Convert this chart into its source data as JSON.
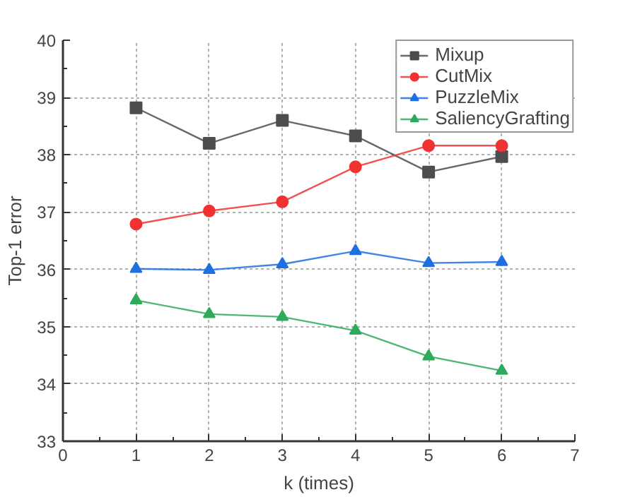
{
  "chart_data": {
    "type": "line",
    "xlabel": "k (times)",
    "ylabel": "Top-1 error",
    "x": [
      1,
      2,
      3,
      4,
      5,
      6
    ],
    "xlim": [
      0,
      7
    ],
    "xticks": [
      0,
      1,
      2,
      3,
      4,
      5,
      6,
      7
    ],
    "ylim": [
      33,
      40
    ],
    "yticks": [
      33,
      34,
      35,
      36,
      37,
      38,
      39,
      40
    ],
    "grid": true,
    "legend": "top right",
    "line_style": "solid",
    "series": [
      {
        "name": "Mixup",
        "color": "#4d4d4d",
        "marker": "square",
        "values": [
          38.82,
          38.2,
          38.6,
          38.33,
          37.7,
          37.97
        ]
      },
      {
        "name": "CutMix",
        "color": "#f03232",
        "marker": "circle",
        "values": [
          36.79,
          37.02,
          37.18,
          37.79,
          38.16,
          38.16
        ]
      },
      {
        "name": "PuzzleMix",
        "color": "#1f6fe0",
        "marker": "triangle",
        "values": [
          36.01,
          35.99,
          36.09,
          36.32,
          36.11,
          36.13
        ]
      },
      {
        "name": "SaliencyGrafting",
        "color": "#2eaa5a",
        "marker": "triangle",
        "values": [
          35.46,
          35.22,
          35.17,
          34.93,
          34.48,
          34.23
        ]
      }
    ]
  }
}
